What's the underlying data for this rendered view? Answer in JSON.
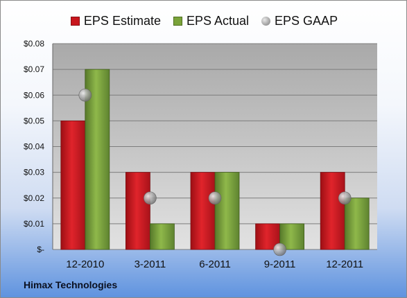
{
  "chart_data": {
    "type": "bar",
    "categories": [
      "12-2010",
      "3-2011",
      "6-2011",
      "9-2011",
      "12-2011"
    ],
    "series": [
      {
        "name": "EPS Estimate",
        "values": [
          0.05,
          0.03,
          0.03,
          0.01,
          0.03
        ],
        "color": "#c8161d"
      },
      {
        "name": "EPS Actual",
        "values": [
          0.07,
          0.01,
          0.03,
          0.01,
          0.02
        ],
        "color": "#7aa33a"
      },
      {
        "name": "EPS GAAP",
        "values": [
          0.06,
          0.02,
          0.02,
          0.0,
          0.02
        ],
        "color": "#9a9a9a",
        "marker": "circle"
      }
    ],
    "yticks": [
      "$-",
      "$0.01",
      "$0.02",
      "$0.03",
      "$0.04",
      "$0.05",
      "$0.06",
      "$0.07",
      "$0.08"
    ],
    "ylim": [
      0,
      0.08
    ],
    "grid": true,
    "legend_position": "top"
  },
  "company": "Himax Technologies"
}
